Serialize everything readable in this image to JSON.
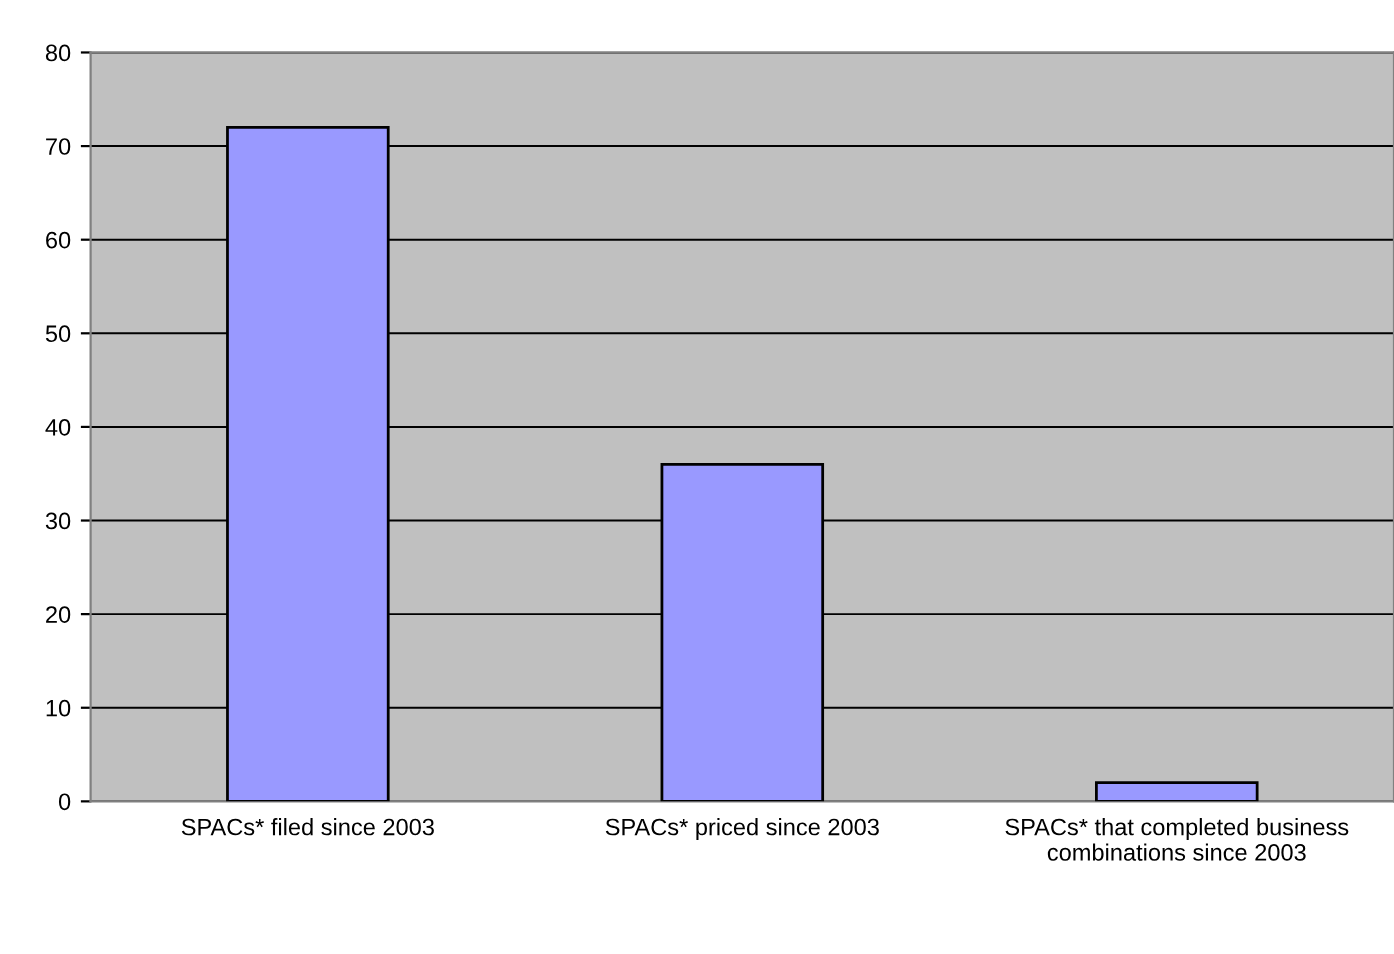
{
  "chart_data": {
    "type": "bar",
    "categories": [
      "SPACs* filed since 2003",
      "SPACs* priced since 2003",
      "SPACs* that completed business combinations since 2003"
    ],
    "values": [
      72,
      36,
      2
    ],
    "color": "#9999ff",
    "ylim": [
      0,
      80
    ],
    "yticks": [
      0,
      10,
      20,
      30,
      40,
      50,
      60,
      70,
      80
    ],
    "grid": "y"
  }
}
